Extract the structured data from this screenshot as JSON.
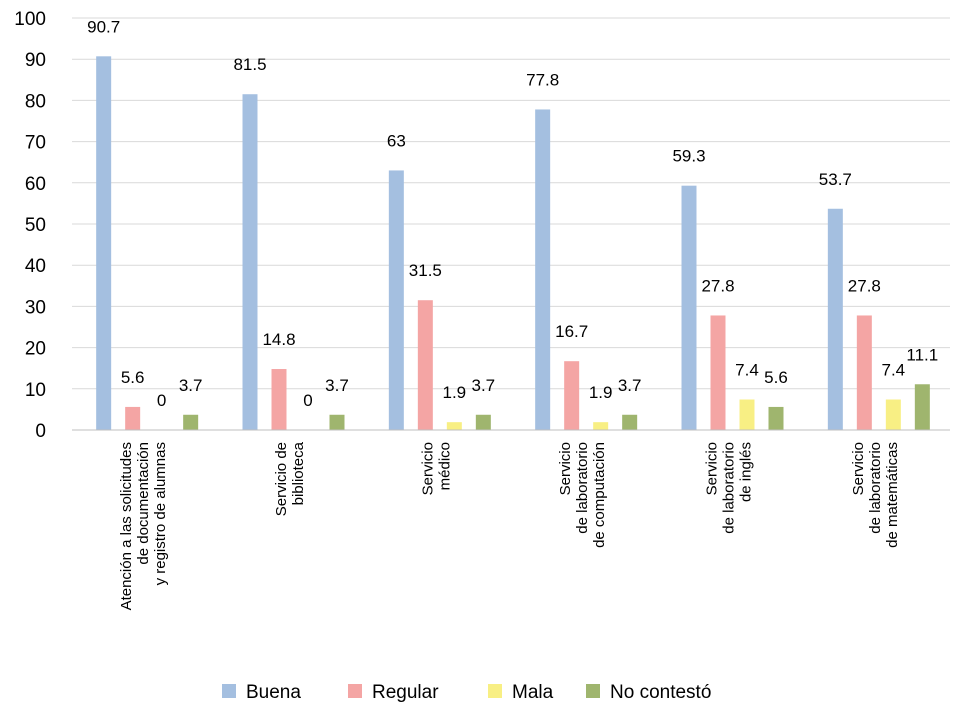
{
  "chart_data": {
    "type": "bar",
    "categories": [
      [
        "Atención a las solicitudes",
        "de documentación",
        "y registro de alumnas"
      ],
      [
        "Servicio de",
        "biblioteca"
      ],
      [
        "Servicio",
        "médico"
      ],
      [
        "Servicio",
        "de laboratorio",
        "de computación"
      ],
      [
        "Servicio",
        "de laboratorio",
        "de inglés"
      ],
      [
        "Servicio",
        "de laboratorio",
        "de matemáticas"
      ]
    ],
    "series": [
      {
        "name": "Buena",
        "color": "#a4bfe0",
        "values": [
          90.7,
          81.5,
          63,
          77.8,
          59.3,
          53.7
        ]
      },
      {
        "name": "Regular",
        "color": "#f4a5a4",
        "values": [
          5.6,
          14.8,
          31.5,
          16.7,
          27.8,
          27.8
        ]
      },
      {
        "name": "Mala",
        "color": "#f8ef84",
        "values": [
          0,
          0,
          1.9,
          1.9,
          7.4,
          7.4
        ]
      },
      {
        "name": "No contestó",
        "color": "#9fb56e",
        "values": [
          3.7,
          3.7,
          3.7,
          3.7,
          5.6,
          11.1
        ]
      }
    ],
    "data_labels": [
      [
        "90.7",
        "81.5",
        "63",
        "77.8",
        "59.3",
        "53.7"
      ],
      [
        "5.6",
        "14.8",
        "31.5",
        "16.7",
        "27.8",
        "27.8"
      ],
      [
        "0",
        "0",
        "1.9",
        "1.9",
        "7.4",
        "7.4"
      ],
      [
        "3.7",
        "3.7",
        "3.7",
        "3.7",
        "5.6",
        "11.1"
      ]
    ],
    "yticks": [
      "0",
      "10",
      "20",
      "30",
      "40",
      "50",
      "60",
      "70",
      "80",
      "90",
      "100"
    ],
    "ylim": [
      0,
      100
    ],
    "grid": true,
    "legend_position": "bottom"
  }
}
